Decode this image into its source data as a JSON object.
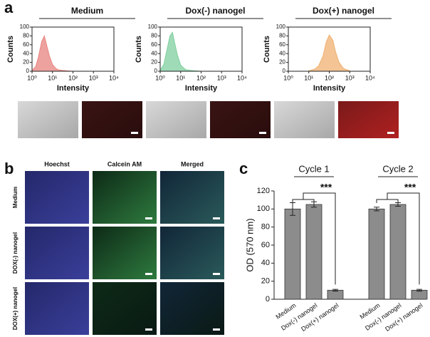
{
  "figure_labels": [
    "a",
    "b",
    "c"
  ],
  "cell_images": {
    "columns": [
      "Hoechst",
      "Calcein AM",
      "Merged"
    ],
    "rows": [
      "Medium",
      "DOX(-) nanogel",
      "DOX(+) nanogel"
    ]
  },
  "chart_data": [
    {
      "type": "area",
      "title": "Medium",
      "x_label": "Intensity",
      "y_label": "Counts",
      "color": "#e8837f",
      "xscale": "log",
      "x": [
        1,
        1.5,
        2,
        3,
        4,
        5,
        7,
        10,
        15,
        20,
        30,
        50,
        100
      ],
      "values": [
        2,
        10,
        30,
        68,
        80,
        62,
        35,
        15,
        6,
        3,
        2,
        1,
        0
      ],
      "xlim": [
        1,
        10000
      ],
      "xticks": [
        {
          "value": 1,
          "label": "10⁰"
        },
        {
          "value": 10,
          "label": "10¹"
        },
        {
          "value": 100,
          "label": "10²"
        },
        {
          "value": 1000,
          "label": "10³"
        },
        {
          "value": 10000,
          "label": "10⁴"
        }
      ],
      "ylim": [
        0,
        100
      ],
      "yticks": [
        0,
        20,
        40,
        60,
        80,
        100
      ]
    },
    {
      "type": "area",
      "title": "Dox(-) nanogel",
      "x_label": "Intensity",
      "y_label": "Counts",
      "color": "#7fcf9f",
      "xscale": "log",
      "x": [
        1,
        1.5,
        2,
        3,
        4,
        5,
        7,
        10,
        15,
        20,
        30,
        50,
        100
      ],
      "values": [
        3,
        15,
        42,
        80,
        88,
        66,
        36,
        14,
        6,
        3,
        2,
        1,
        0
      ],
      "xlim": [
        1,
        10000
      ],
      "xticks": [
        {
          "value": 1,
          "label": "10⁰"
        },
        {
          "value": 10,
          "label": "10¹"
        },
        {
          "value": 100,
          "label": "10²"
        },
        {
          "value": 1000,
          "label": "10³"
        },
        {
          "value": 10000,
          "label": "10⁴"
        }
      ],
      "ylim": [
        0,
        100
      ],
      "yticks": [
        0,
        20,
        40,
        60,
        80,
        100
      ]
    },
    {
      "type": "area",
      "title": "Dox(+) nanogel",
      "x_label": "Intensity",
      "y_label": "Counts",
      "color": "#f0b070",
      "xscale": "log",
      "x": [
        10,
        20,
        30,
        50,
        70,
        100,
        150,
        200,
        300,
        500,
        1000
      ],
      "values": [
        1,
        5,
        12,
        35,
        65,
        82,
        70,
        45,
        20,
        6,
        1
      ],
      "xlim": [
        1,
        10000
      ],
      "xticks": [
        {
          "value": 1,
          "label": "10⁰"
        },
        {
          "value": 10,
          "label": "10¹"
        },
        {
          "value": 100,
          "label": "10²"
        },
        {
          "value": 1000,
          "label": "10³"
        },
        {
          "value": 10000,
          "label": "10⁴"
        }
      ],
      "ylim": [
        0,
        100
      ],
      "yticks": [
        0,
        20,
        40,
        60,
        80,
        100
      ]
    },
    {
      "type": "bar",
      "y_label": "OD (570 nm)",
      "color": "#8c8c8c",
      "categories": [
        "Medium",
        "Dox(-) nanogel",
        "Dox(+) nanogel",
        "Medium",
        "Dox(-) nanogel",
        "Dox(+) nanogel"
      ],
      "values": [
        100,
        105,
        10,
        100,
        105,
        10
      ],
      "errors": [
        7,
        3,
        1,
        2,
        2,
        1
      ],
      "group_labels": [
        "Cycle 1",
        "Cycle 2"
      ],
      "significance": [
        "***",
        "***"
      ],
      "ylim": [
        0,
        120
      ],
      "yticks": [
        0,
        20,
        40,
        60,
        80,
        100,
        120
      ]
    }
  ]
}
